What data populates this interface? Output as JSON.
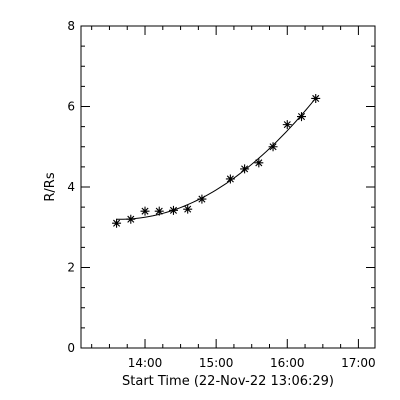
{
  "chart_data": {
    "type": "scatter",
    "xlabel": "Start Time (22-Nov-22 13:06:29)",
    "ylabel": "R/Rs",
    "xlim": [
      "13:06",
      "17:14"
    ],
    "ylim": [
      0,
      8
    ],
    "x_ticks": [
      "14:00",
      "15:00",
      "16:00",
      "17:00"
    ],
    "y_ticks": [
      "0",
      "2",
      "4",
      "6",
      "8"
    ],
    "grid": false,
    "marker": "asterisk",
    "series": [
      {
        "x": [
          "13:36",
          "13:48",
          "14:00",
          "14:12",
          "14:24",
          "14:36",
          "14:48",
          "15:12",
          "15:24",
          "15:36",
          "15:48",
          "16:00",
          "16:12",
          "16:24"
        ],
        "y": [
          3.1,
          3.2,
          3.4,
          3.4,
          3.42,
          3.45,
          3.7,
          4.2,
          4.45,
          4.6,
          5.0,
          5.55,
          5.75,
          6.2
        ]
      }
    ],
    "fit_curve": true,
    "colors": {
      "ink": "#000000",
      "background": "#ffffff"
    }
  }
}
